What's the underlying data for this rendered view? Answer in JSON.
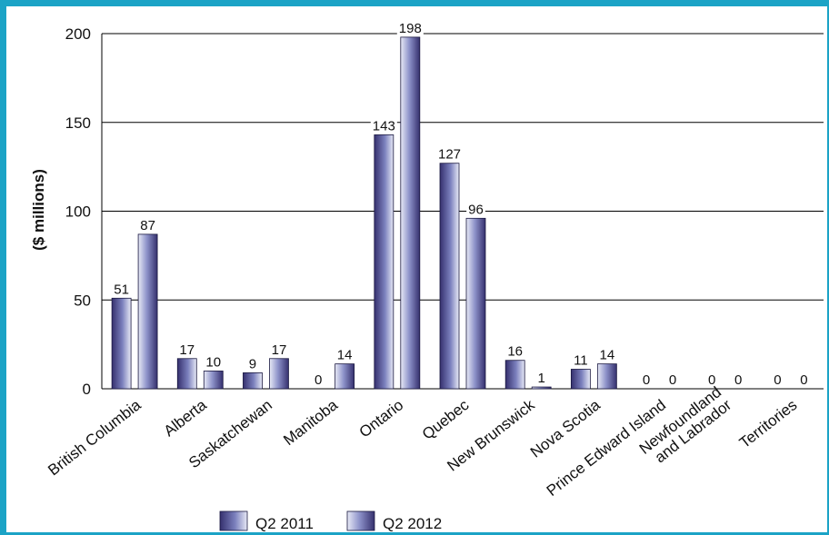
{
  "chart_data": {
    "type": "bar",
    "title": "",
    "xlabel": "",
    "ylabel": "($ millions)",
    "ylim": [
      0,
      200
    ],
    "yticks": [
      0,
      50,
      100,
      150,
      200
    ],
    "grid": true,
    "legend_position": "bottom",
    "categories": [
      "British Columbia",
      "Alberta",
      "Saskatchewan",
      "Manitoba",
      "Ontario",
      "Quebec",
      "New Brunswick",
      "Nova Scotia",
      "Prince Edward Island",
      "Newfoundland\nand Labrador",
      "Territories"
    ],
    "series": [
      {
        "name": "Q2 2011",
        "values": [
          51,
          17,
          9,
          0,
          143,
          127,
          16,
          11,
          0,
          0,
          0
        ]
      },
      {
        "name": "Q2 2012",
        "values": [
          87,
          10,
          17,
          14,
          198,
          96,
          1,
          14,
          0,
          0,
          0
        ]
      }
    ]
  },
  "colors": {
    "frame": "#1ba3c6",
    "bar_dark": "#35306e",
    "bar_mid": "#8d92c9",
    "bar_light": "#e4e7f4",
    "grid": "#000000"
  }
}
